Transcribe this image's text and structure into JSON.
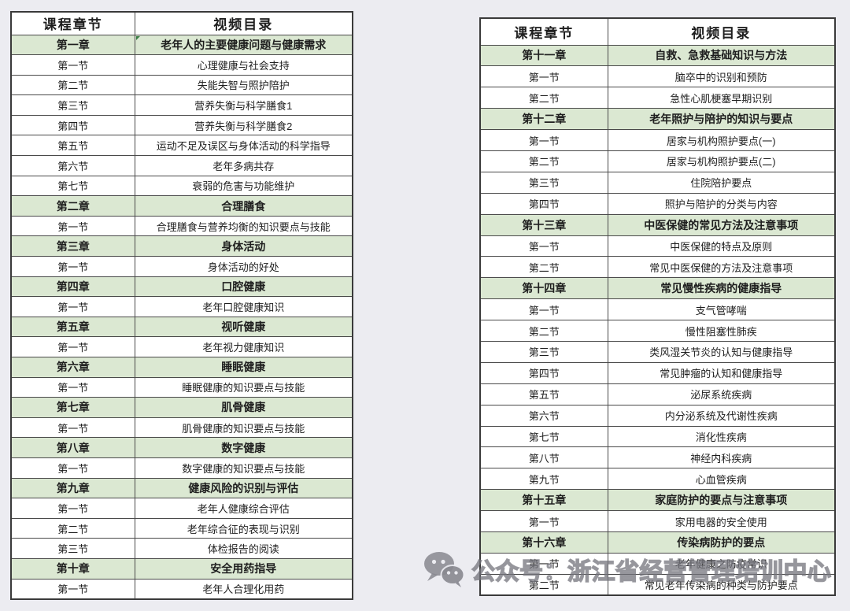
{
  "page": {
    "background_color": "#ececf1",
    "table_background": "#ffffff",
    "chapter_row_color": "#dbe8d2",
    "border_color": "#4a4a4a",
    "watermark_color": "#77777f"
  },
  "tables": [
    {
      "position": "left",
      "headers": [
        "课程章节",
        "视频目录"
      ],
      "rows": [
        {
          "type": "chapter",
          "label": "第一章",
          "title": "老年人的主要健康问题与健康需求",
          "flag": "green-corner-marker"
        },
        {
          "type": "section",
          "label": "第一节",
          "title": "心理健康与社会支持"
        },
        {
          "type": "section",
          "label": "第二节",
          "title": "失能失智与照护陪护"
        },
        {
          "type": "section",
          "label": "第三节",
          "title": "营养失衡与科学膳食1"
        },
        {
          "type": "section",
          "label": "第四节",
          "title": "营养失衡与科学膳食2"
        },
        {
          "type": "section",
          "label": "第五节",
          "title": "运动不足及误区与身体活动的科学指导"
        },
        {
          "type": "section",
          "label": "第六节",
          "title": "老年多病共存"
        },
        {
          "type": "section",
          "label": "第七节",
          "title": "衰弱的危害与功能维护"
        },
        {
          "type": "chapter",
          "label": "第二章",
          "title": "合理膳食"
        },
        {
          "type": "section",
          "label": "第一节",
          "title": "合理膳食与营养均衡的知识要点与技能"
        },
        {
          "type": "chapter",
          "label": "第三章",
          "title": "身体活动"
        },
        {
          "type": "section",
          "label": "第一节",
          "title": "身体活动的好处"
        },
        {
          "type": "chapter",
          "label": "第四章",
          "title": "口腔健康"
        },
        {
          "type": "section",
          "label": "第一节",
          "title": "老年口腔健康知识"
        },
        {
          "type": "chapter",
          "label": "第五章",
          "title": "视听健康"
        },
        {
          "type": "section",
          "label": "第一节",
          "title": "老年视力健康知识"
        },
        {
          "type": "chapter",
          "label": "第六章",
          "title": "睡眠健康"
        },
        {
          "type": "section",
          "label": "第一节",
          "title": "睡眠健康的知识要点与技能"
        },
        {
          "type": "chapter",
          "label": "第七章",
          "title": "肌骨健康"
        },
        {
          "type": "section",
          "label": "第一节",
          "title": "肌骨健康的知识要点与技能"
        },
        {
          "type": "chapter",
          "label": "第八章",
          "title": "数字健康"
        },
        {
          "type": "section",
          "label": "第一节",
          "title": "数字健康的知识要点与技能"
        },
        {
          "type": "chapter",
          "label": "第九章",
          "title": "健康风险的识别与评估"
        },
        {
          "type": "section",
          "label": "第一节",
          "title": "老年人健康综合评估"
        },
        {
          "type": "section",
          "label": "第二节",
          "title": "老年综合征的表现与识别"
        },
        {
          "type": "section",
          "label": "第三节",
          "title": "体检报告的阅读"
        },
        {
          "type": "chapter",
          "label": "第十章",
          "title": "安全用药指导"
        },
        {
          "type": "section",
          "label": "第一节",
          "title": "老年人合理化用药"
        }
      ]
    },
    {
      "position": "right",
      "headers": [
        "课程章节",
        "视频目录"
      ],
      "rows": [
        {
          "type": "chapter",
          "label": "第十一章",
          "title": "自救、急救基础知识与方法"
        },
        {
          "type": "section",
          "label": "第一节",
          "title": "脑卒中的识别和预防"
        },
        {
          "type": "section",
          "label": "第二节",
          "title": "急性心肌梗塞早期识别"
        },
        {
          "type": "chapter",
          "label": "第十二章",
          "title": "老年照护与陪护的知识与要点"
        },
        {
          "type": "section",
          "label": "第一节",
          "title": "居家与机构照护要点(一)"
        },
        {
          "type": "section",
          "label": "第二节",
          "title": "居家与机构照护要点(二)"
        },
        {
          "type": "section",
          "label": "第三节",
          "title": "住院陪护要点"
        },
        {
          "type": "section",
          "label": "第四节",
          "title": "照护与陪护的分类与内容"
        },
        {
          "type": "chapter",
          "label": "第十三章",
          "title": "中医保健的常见方法及注意事项"
        },
        {
          "type": "section",
          "label": "第一节",
          "title": "中医保健的特点及原则"
        },
        {
          "type": "section",
          "label": "第二节",
          "title": "常见中医保健的方法及注意事项"
        },
        {
          "type": "chapter",
          "label": "第十四章",
          "title": "常见慢性疾病的健康指导"
        },
        {
          "type": "section",
          "label": "第一节",
          "title": "支气管哮喘"
        },
        {
          "type": "section",
          "label": "第二节",
          "title": "慢性阻塞性肺疾"
        },
        {
          "type": "section",
          "label": "第三节",
          "title": "类风湿关节炎的认知与健康指导"
        },
        {
          "type": "section",
          "label": "第四节",
          "title": "常见肿瘤的认知和健康指导"
        },
        {
          "type": "section",
          "label": "第五节",
          "title": "泌尿系统疾病"
        },
        {
          "type": "section",
          "label": "第六节",
          "title": "内分泌系统及代谢性疾病"
        },
        {
          "type": "section",
          "label": "第七节",
          "title": "消化性疾病"
        },
        {
          "type": "section",
          "label": "第八节",
          "title": "神经内科疾病"
        },
        {
          "type": "section",
          "label": "第九节",
          "title": "心血管疾病"
        },
        {
          "type": "chapter",
          "label": "第十五章",
          "title": "家庭防护的要点与注意事项"
        },
        {
          "type": "section",
          "label": "第一节",
          "title": "家用电器的安全使用"
        },
        {
          "type": "chapter",
          "label": "第十六章",
          "title": "传染病防护的要点"
        },
        {
          "type": "section",
          "label": "第一节",
          "title": "老年健康之防疫常识"
        },
        {
          "type": "section",
          "label": "第二节",
          "title": "常见老年传染病的种类与防护要点"
        }
      ]
    }
  ],
  "watermark": {
    "icon": "wechat-icon",
    "text": "公众号：浙江省经营管理培训中心"
  }
}
